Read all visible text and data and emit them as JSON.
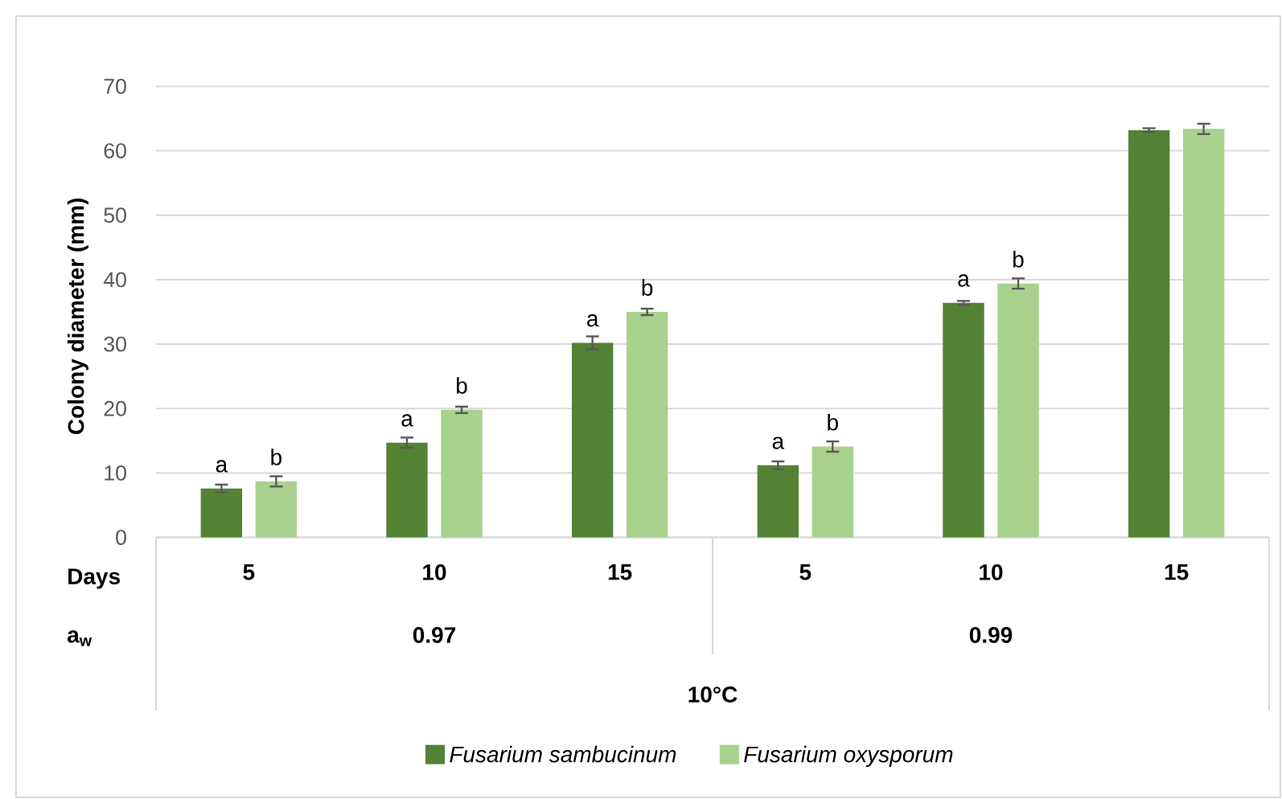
{
  "chart_data": {
    "type": "bar",
    "ylabel": "Colony diameter (mm)",
    "categories": [
      "5",
      "10",
      "15",
      "5",
      "10",
      "15"
    ],
    "series": [
      {
        "name": "Fusarium sambucinum",
        "color": "#548235",
        "values": [
          7.6,
          14.7,
          30.2,
          11.2,
          36.4,
          63.2
        ],
        "errors": [
          0.6,
          0.8,
          1.0,
          0.6,
          0.3,
          0.3
        ],
        "value_labels": [
          "a",
          "a",
          "a",
          "a",
          "a",
          null
        ]
      },
      {
        "name": "Fusarium oxysporum",
        "color": "#a9d18e",
        "values": [
          8.7,
          19.8,
          35.0,
          14.1,
          39.4,
          63.4
        ],
        "errors": [
          0.8,
          0.5,
          0.5,
          0.8,
          0.8,
          0.8
        ],
        "value_labels": [
          "b",
          "b",
          "b",
          "b",
          "b",
          null
        ]
      }
    ],
    "ylim": [
      0,
      70
    ],
    "yticks": [
      0,
      10,
      20,
      30,
      40,
      50,
      60,
      70
    ],
    "grid": "y",
    "legend": "bottom",
    "annotations": [
      "Days",
      "a$_{w}$",
      "0.97",
      "0.99",
      "10°C"
    ]
  }
}
